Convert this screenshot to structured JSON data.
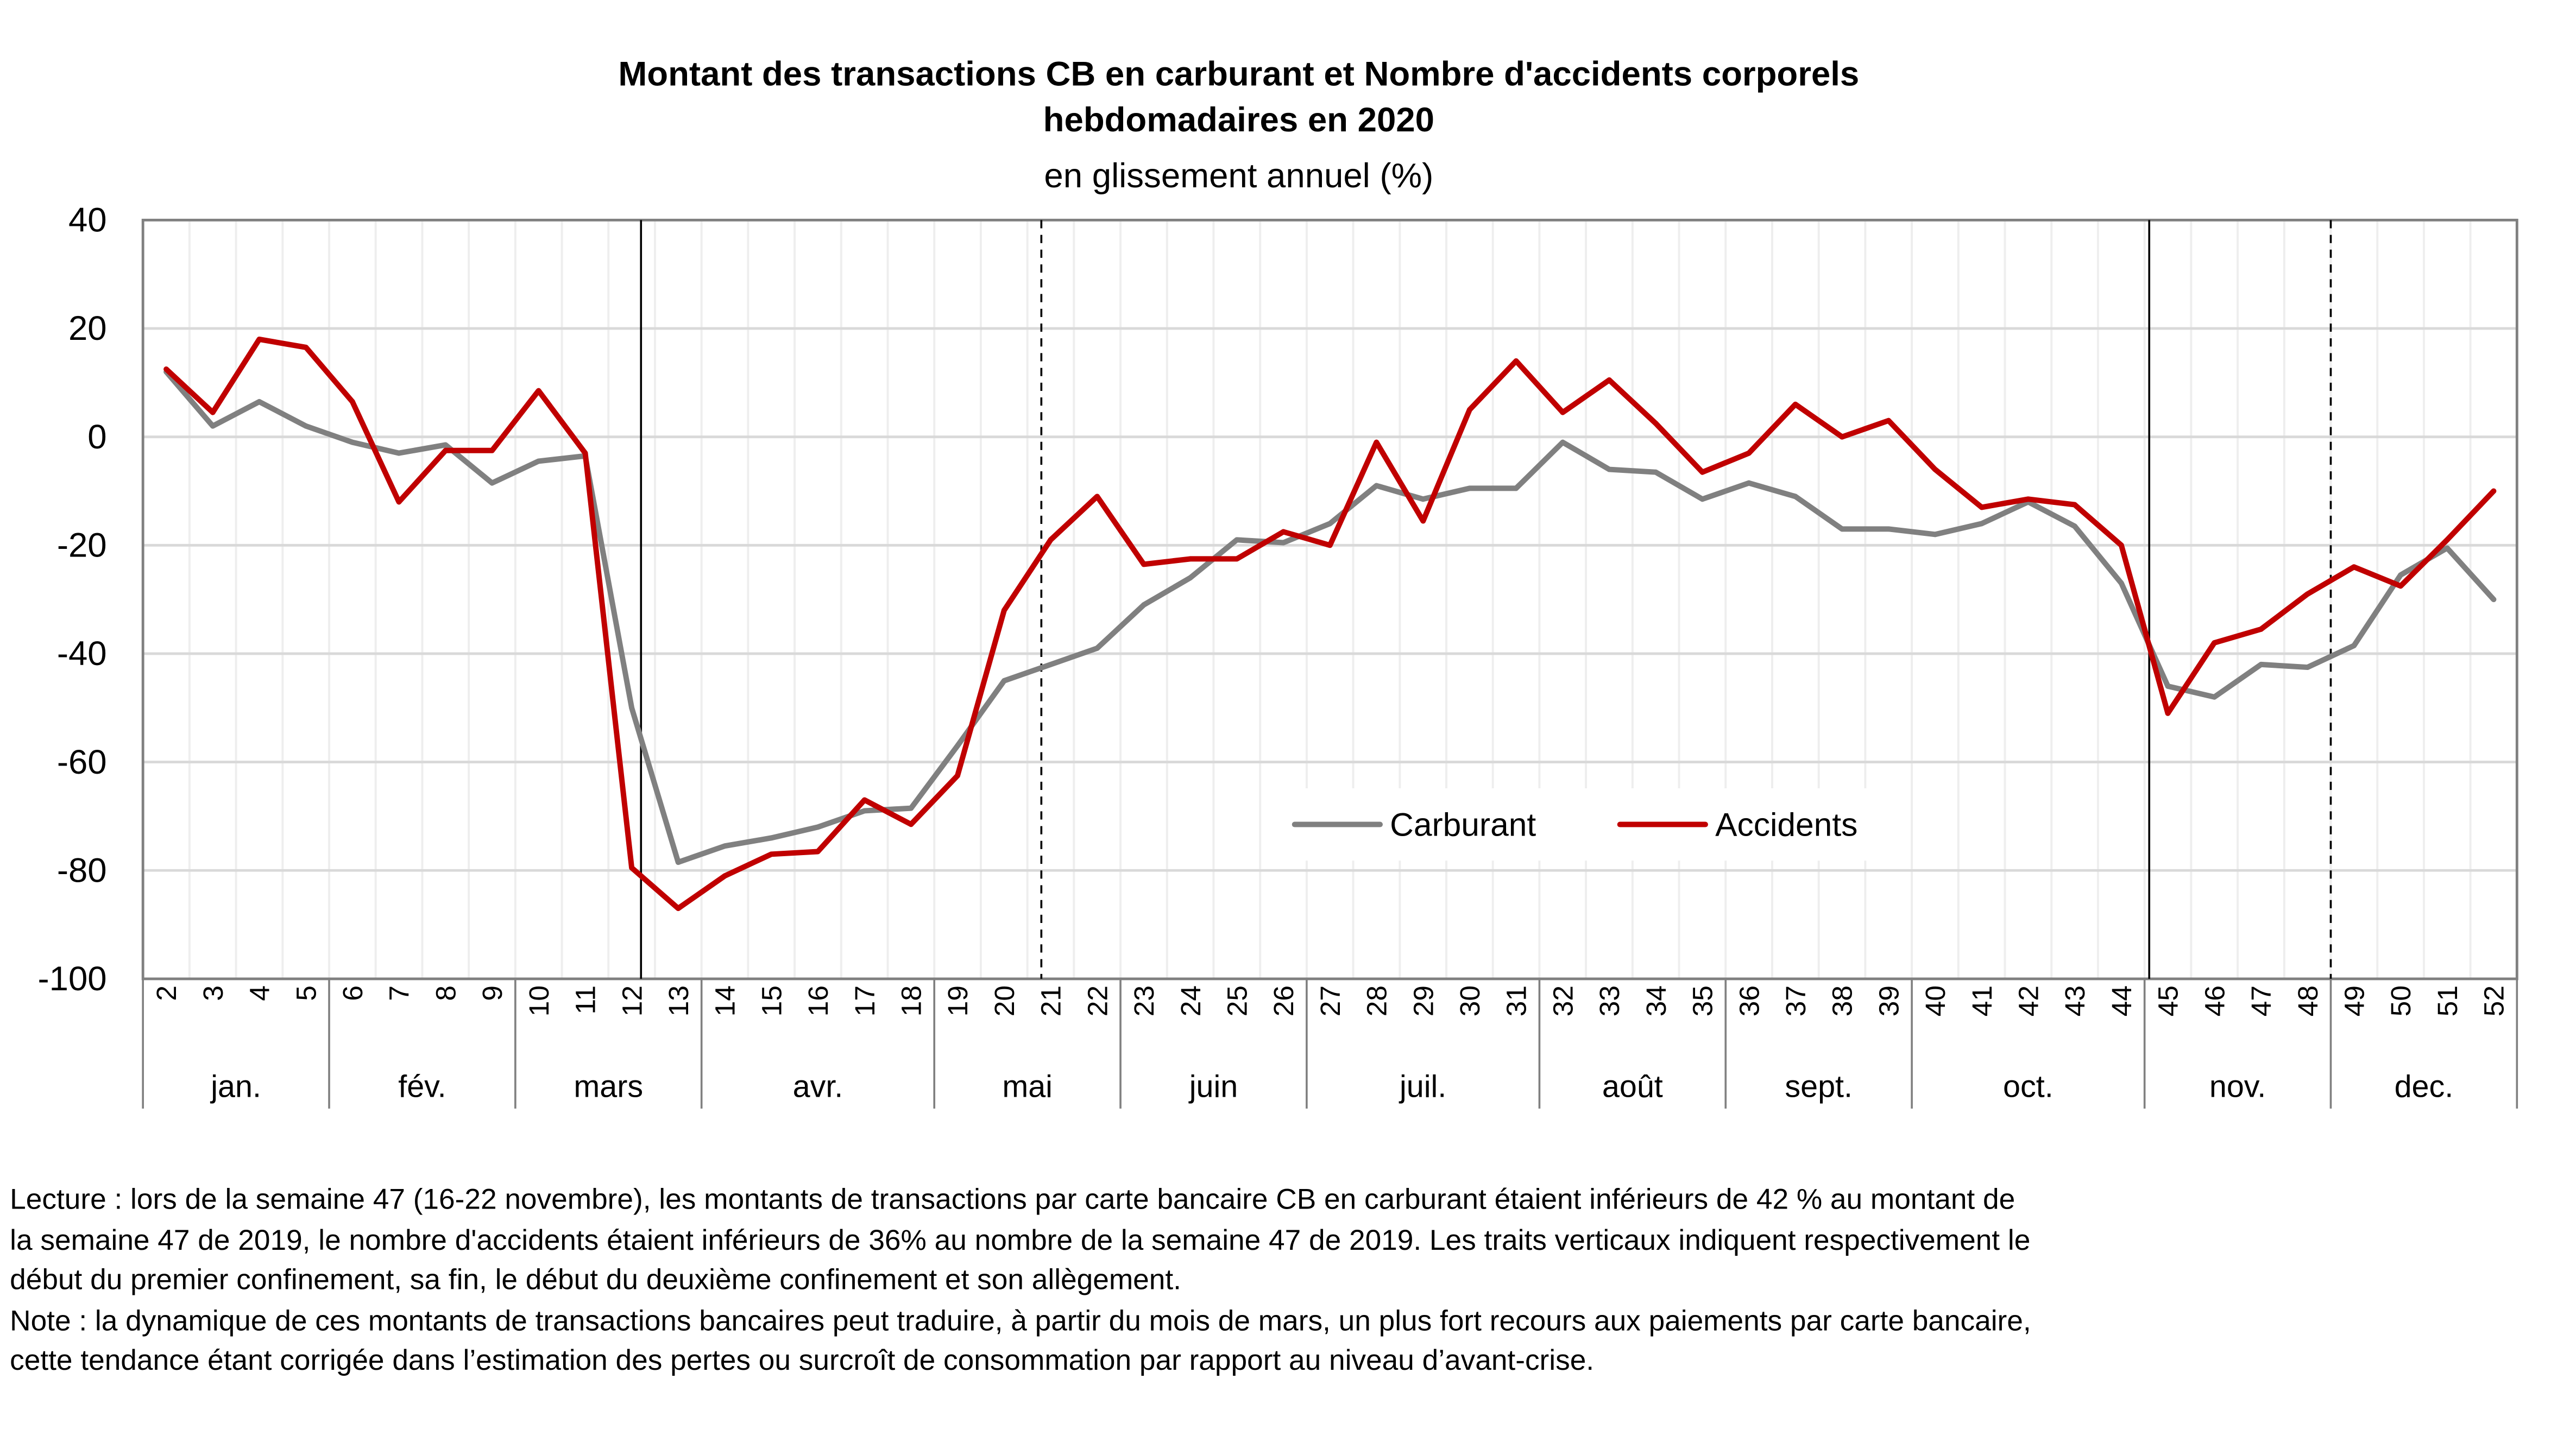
{
  "chart_data": {
    "type": "line",
    "title_line1": "Montant des transactions CB en carburant et Nombre d'accidents corporels",
    "title_line2": "hebdomadaires en 2020",
    "subtitle": "en glissement annuel (%)",
    "xlabel": "",
    "ylabel": "",
    "ylim": [
      -100,
      40
    ],
    "yticks": [
      "40",
      "20",
      "0",
      "-20",
      "-40",
      "-60",
      "-80",
      "-100"
    ],
    "grid": true,
    "legend_placement": "bottom-center",
    "x": [
      2,
      3,
      4,
      5,
      6,
      7,
      8,
      9,
      10,
      11,
      12,
      13,
      14,
      15,
      16,
      17,
      18,
      19,
      20,
      21,
      22,
      23,
      24,
      25,
      26,
      27,
      28,
      29,
      30,
      31,
      32,
      33,
      34,
      35,
      36,
      37,
      38,
      39,
      40,
      41,
      42,
      43,
      44,
      45,
      46,
      47,
      48,
      49,
      50,
      51,
      52
    ],
    "months": [
      {
        "label": "jan.",
        "weeks": [
          2,
          5
        ]
      },
      {
        "label": "fév.",
        "weeks": [
          6,
          9
        ]
      },
      {
        "label": "mars",
        "weeks": [
          10,
          13
        ]
      },
      {
        "label": "avr.",
        "weeks": [
          14,
          18
        ]
      },
      {
        "label": "mai",
        "weeks": [
          19,
          22
        ]
      },
      {
        "label": "juin",
        "weeks": [
          23,
          26
        ]
      },
      {
        "label": "juil.",
        "weeks": [
          27,
          31
        ]
      },
      {
        "label": "août",
        "weeks": [
          32,
          35
        ]
      },
      {
        "label": "sept.",
        "weeks": [
          36,
          39
        ]
      },
      {
        "label": "oct.",
        "weeks": [
          40,
          44
        ]
      },
      {
        "label": "nov.",
        "weeks": [
          45,
          48
        ]
      },
      {
        "label": "dec.",
        "weeks": [
          49,
          52
        ]
      }
    ],
    "series": [
      {
        "name": "Carburant",
        "color": "#808080",
        "values": [
          12,
          2,
          6.5,
          2,
          -1,
          -3,
          -1.5,
          -8.5,
          -4.5,
          -3.5,
          -50,
          -78.5,
          -75.5,
          -74,
          -72,
          -69,
          -68.5,
          -57,
          -45,
          -42,
          -39,
          -31,
          -26,
          -19,
          -19.5,
          -16,
          -9,
          -11.5,
          -9.5,
          -9.5,
          -1,
          -6,
          -6.5,
          -11.5,
          -8.5,
          -11,
          -17,
          -17,
          -18,
          -16,
          -12,
          -16.5,
          -27,
          -46,
          -48,
          -42,
          -42.5,
          -38.5,
          -25.5,
          -20.5,
          -30
        ]
      },
      {
        "name": "Accidents",
        "color": "#C00000",
        "values": [
          12.5,
          4.5,
          18,
          16.5,
          6.5,
          -12,
          -2.5,
          -2.5,
          8.5,
          -3,
          -79.5,
          -87,
          -81,
          -77,
          -76.5,
          -67,
          -71.5,
          -62.5,
          -32,
          -19,
          -11,
          -23.5,
          -22.5,
          -22.5,
          -17.5,
          -20,
          -1,
          -15.5,
          5,
          14,
          4.5,
          10.5,
          2.5,
          -6.5,
          -3,
          6,
          0,
          3,
          -6,
          -13,
          -11.5,
          -12.5,
          -20,
          -51,
          -38,
          -35.5,
          -29,
          -24,
          -27.5,
          -19,
          -10
        ]
      }
    ],
    "vertical_markers": [
      {
        "week": 12.2,
        "style": "solid"
      },
      {
        "week": 20.8,
        "style": "dashed"
      },
      {
        "week": 44.6,
        "style": "solid"
      },
      {
        "week": 48.5,
        "style": "dashed"
      }
    ]
  },
  "notes": {
    "lecture_lines": [
      "Lecture : lors de la semaine 47 (16-22 novembre), les montants de transactions par carte bancaire CB en carburant étaient inférieurs de 42 % au montant de",
      "la semaine 47 de 2019, le nombre d'accidents étaient inférieurs de 36% au nombre de la semaine 47 de 2019. Les traits verticaux indiquent respectivement le",
      "début du premier confinement, sa fin, le début du deuxième confinement et son allègement."
    ],
    "note_lines": [
      "Note : la dynamique de ces montants de transactions bancaires peut traduire, à partir du mois de mars, un plus fort recours aux paiements par carte bancaire,",
      "cette tendance étant corrigée dans l’estimation des pertes ou surcroît de consommation par rapport au niveau d’avant-crise."
    ]
  }
}
